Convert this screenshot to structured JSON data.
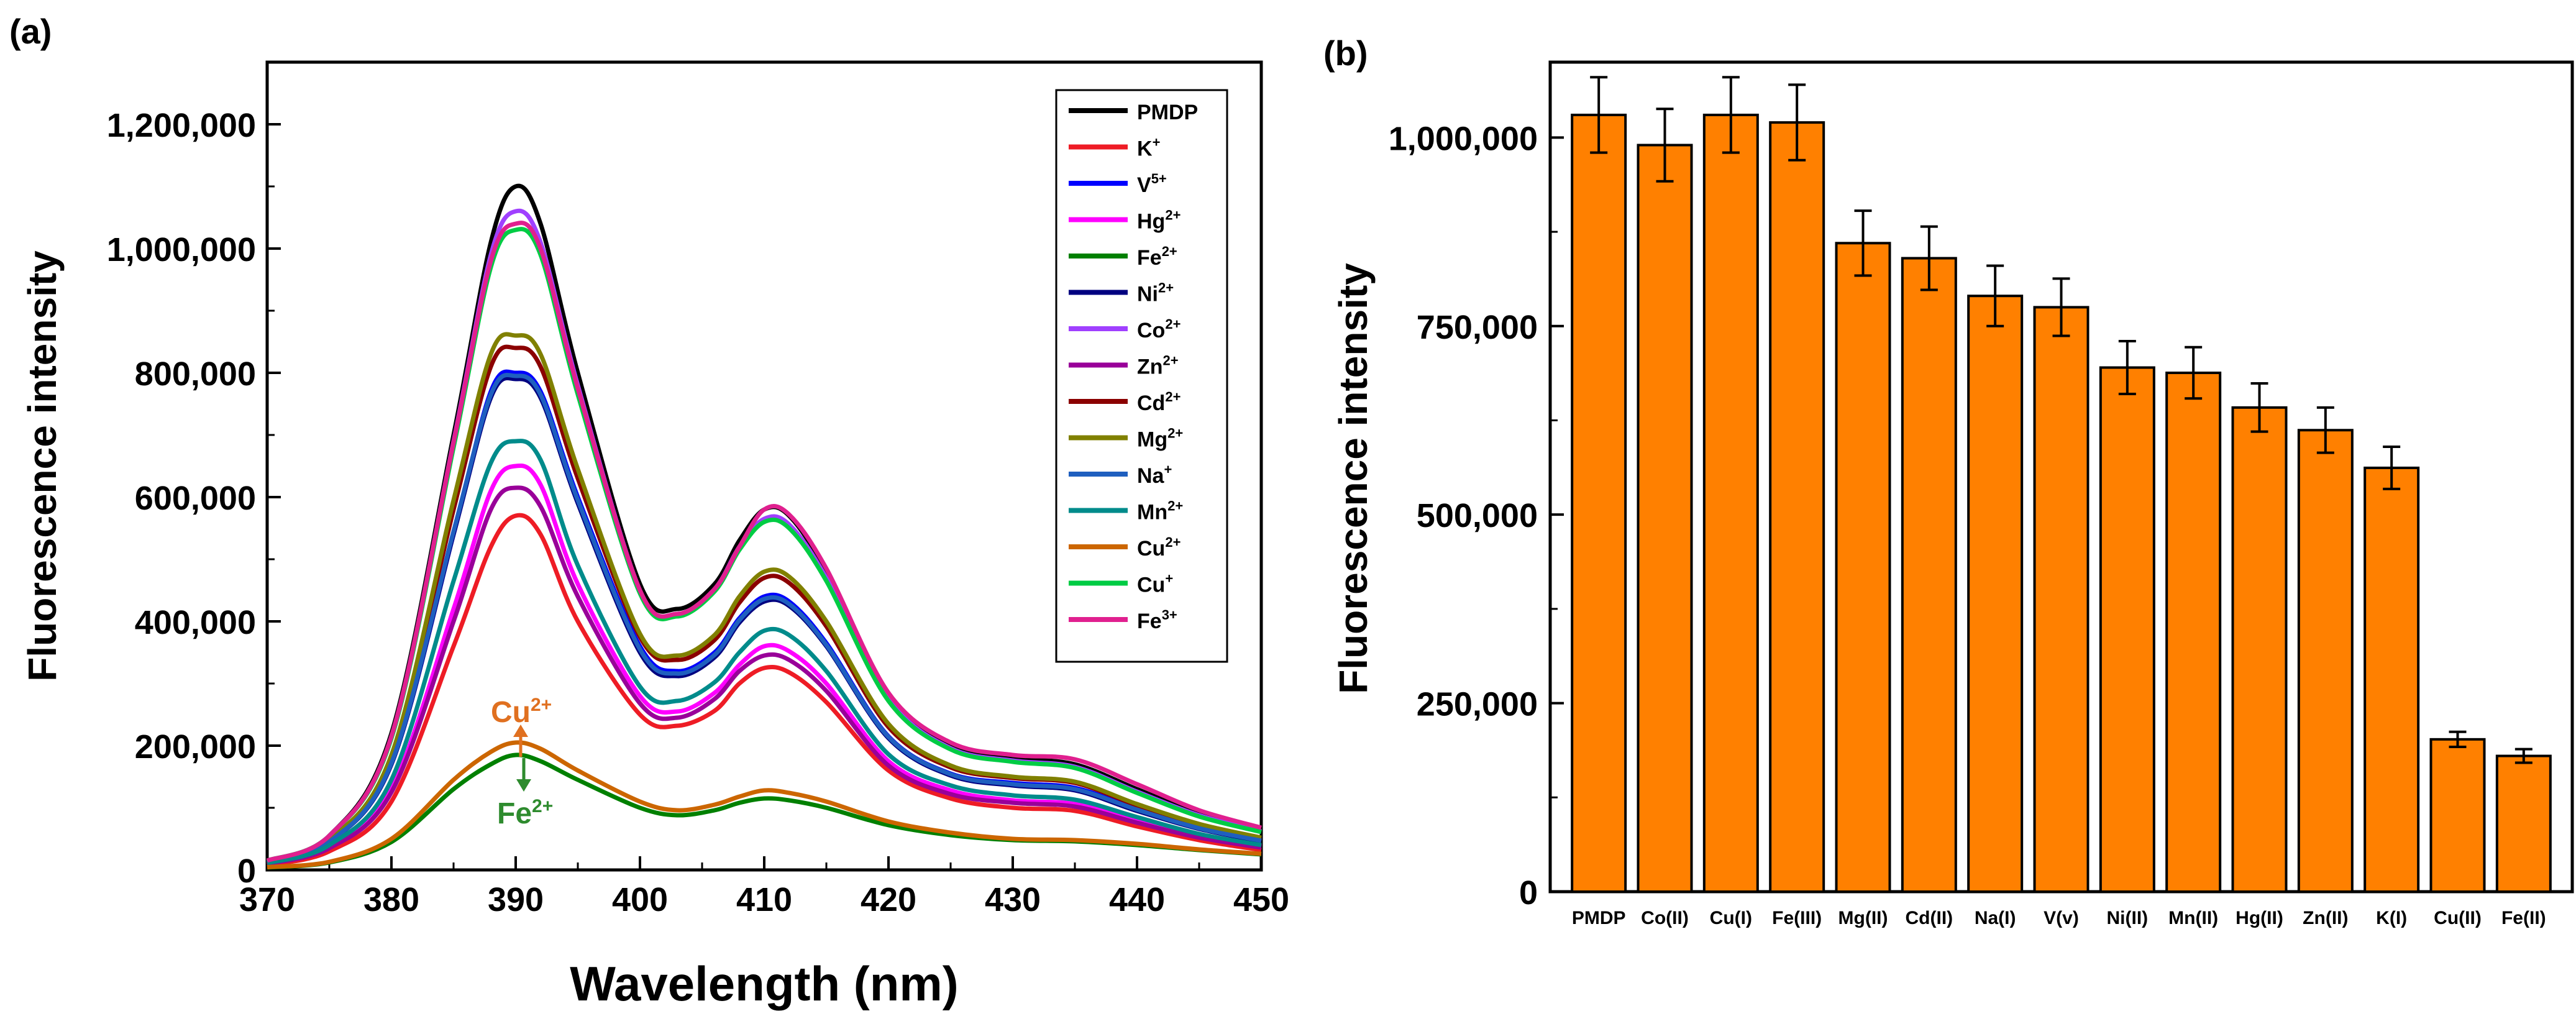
{
  "panel_a": {
    "panel_label": "(a)",
    "legend": [
      "PMDP",
      "K+",
      "V5+",
      "Hg2+",
      "Fe2+",
      "Ni2+",
      "Co2+",
      "Zn2+",
      "Cd2+",
      "Mg2+",
      "Na+",
      "Mn2+",
      "Cu2+",
      "Cu+",
      "Fe3+"
    ],
    "annotations": {
      "cu": {
        "text": "Cu",
        "sup": "2+",
        "arrow": "up",
        "color": "#E07020"
      },
      "fe": {
        "text": "Fe",
        "sup": "2+",
        "arrow": "down",
        "color": "#2E8B2E"
      }
    }
  },
  "panel_b": {
    "panel_label": "(b)"
  },
  "chart_data": [
    {
      "type": "line",
      "title": "",
      "xlabel": "Wavelength (nm)",
      "ylabel": "Fluorescence intensity",
      "xlim": [
        370,
        450
      ],
      "ylim": [
        0,
        1300000
      ],
      "xticks": [
        370,
        380,
        390,
        400,
        410,
        420,
        430,
        440,
        450
      ],
      "yticks": [
        0,
        200000,
        400000,
        600000,
        800000,
        1000000,
        1200000
      ],
      "ytick_labels": [
        "0",
        "200,000",
        "400,000",
        "600,000",
        "800,000",
        "1,000,000",
        "1,200,000"
      ],
      "x": [
        370,
        375,
        380,
        385,
        388,
        390,
        392,
        395,
        400,
        403,
        406,
        408,
        410,
        412,
        415,
        420,
        425,
        430,
        435,
        440,
        445,
        450
      ],
      "series": [
        {
          "name": "PMDP",
          "color": "#000000",
          "values": [
            15000,
            55000,
            220000,
            700000,
            1010000,
            1100000,
            1040000,
            800000,
            460000,
            420000,
            460000,
            530000,
            580000,
            570000,
            480000,
            280000,
            200000,
            180000,
            170000,
            130000,
            90000,
            65000
          ]
        },
        {
          "name": "K+",
          "color": "#EE1C25",
          "values": [
            8000,
            30000,
            110000,
            360000,
            520000,
            570000,
            540000,
            400000,
            250000,
            232000,
            256000,
            300000,
            325000,
            318000,
            270000,
            160000,
            115000,
            100000,
            95000,
            70000,
            48000,
            32000
          ]
        },
        {
          "name": "V5+",
          "color": "#0000FF",
          "values": [
            12000,
            45000,
            170000,
            540000,
            770000,
            800000,
            770000,
            600000,
            360000,
            320000,
            350000,
            405000,
            440000,
            432000,
            365000,
            215000,
            155000,
            140000,
            132000,
            98000,
            68000,
            48000
          ]
        },
        {
          "name": "Hg2+",
          "color": "#FF00FF",
          "values": [
            10000,
            36000,
            130000,
            420000,
            610000,
            650000,
            620000,
            460000,
            280000,
            255000,
            285000,
            330000,
            360000,
            352000,
            300000,
            175000,
            128000,
            112000,
            106000,
            80000,
            55000,
            38000
          ]
        },
        {
          "name": "Fe2+",
          "color": "#008000",
          "values": [
            4000,
            12000,
            45000,
            130000,
            170000,
            185000,
            175000,
            145000,
            100000,
            88000,
            96000,
            108000,
            115000,
            112000,
            100000,
            72000,
            56000,
            48000,
            46000,
            40000,
            32000,
            25000
          ]
        },
        {
          "name": "Ni2+",
          "color": "#000080",
          "values": [
            12000,
            45000,
            170000,
            540000,
            760000,
            790000,
            760000,
            590000,
            350000,
            312000,
            342000,
            398000,
            432000,
            425000,
            360000,
            212000,
            152000,
            136000,
            128000,
            95000,
            66000,
            46000
          ]
        },
        {
          "name": "Co2+",
          "color": "#A040FF",
          "values": [
            15000,
            55000,
            215000,
            690000,
            990000,
            1060000,
            1010000,
            780000,
            450000,
            412000,
            452000,
            520000,
            565000,
            556000,
            470000,
            275000,
            196000,
            176000,
            166000,
            126000,
            88000,
            62000
          ]
        },
        {
          "name": "Zn2+",
          "color": "#990099",
          "values": [
            10000,
            35000,
            125000,
            400000,
            580000,
            615000,
            585000,
            440000,
            268000,
            245000,
            275000,
            320000,
            345000,
            338000,
            288000,
            168000,
            122000,
            108000,
            102000,
            76000,
            52000,
            36000
          ]
        },
        {
          "name": "Cd2+",
          "color": "#8B0000",
          "values": [
            13000,
            48000,
            180000,
            580000,
            810000,
            840000,
            810000,
            630000,
            375000,
            338000,
            370000,
            430000,
            470000,
            462000,
            392000,
            230000,
            165000,
            148000,
            140000,
            104000,
            72000,
            50000
          ]
        },
        {
          "name": "Mg2+",
          "color": "#808000",
          "values": [
            13000,
            49000,
            185000,
            595000,
            830000,
            860000,
            830000,
            645000,
            380000,
            345000,
            378000,
            440000,
            480000,
            472000,
            400000,
            235000,
            168000,
            150000,
            142000,
            106000,
            74000,
            52000
          ]
        },
        {
          "name": "Na+",
          "color": "#1F5FBF",
          "values": [
            12000,
            45000,
            172000,
            545000,
            765000,
            795000,
            765000,
            595000,
            355000,
            316000,
            346000,
            402000,
            436000,
            428000,
            362000,
            214000,
            154000,
            138000,
            130000,
            97000,
            67000,
            47000
          ]
        },
        {
          "name": "Mn2+",
          "color": "#008B8B",
          "values": [
            11000,
            40000,
            145000,
            465000,
            655000,
            690000,
            660000,
            490000,
            295000,
            272000,
            302000,
            350000,
            385000,
            378000,
            320000,
            186000,
            136000,
            120000,
            113000,
            85000,
            58000,
            40000
          ]
        },
        {
          "name": "Cu2+",
          "color": "#CC6600",
          "values": [
            4500,
            13000,
            50000,
            145000,
            190000,
            205000,
            195000,
            160000,
            110000,
            96000,
            105000,
            118000,
            128000,
            124000,
            110000,
            78000,
            60000,
            50000,
            48000,
            42000,
            33000,
            26000
          ]
        },
        {
          "name": "Cu+",
          "color": "#00CC44",
          "values": [
            15000,
            55000,
            212000,
            680000,
            970000,
            1030000,
            990000,
            765000,
            445000,
            408000,
            448000,
            515000,
            560000,
            550000,
            465000,
            272000,
            194000,
            174000,
            164000,
            124000,
            86000,
            61000
          ]
        },
        {
          "name": "Fe3+",
          "color": "#E0208F",
          "values": [
            15000,
            55000,
            215000,
            688000,
            980000,
            1040000,
            1000000,
            775000,
            450000,
            412000,
            452000,
            520000,
            580000,
            572000,
            485000,
            285000,
            205000,
            185000,
            178000,
            138000,
            96000,
            68000
          ]
        }
      ]
    },
    {
      "type": "bar",
      "title": "",
      "xlabel": "",
      "ylabel": "Fluorescence intensity",
      "ylim": [
        0,
        1100000
      ],
      "yticks": [
        0,
        250000,
        500000,
        750000,
        1000000
      ],
      "ytick_labels": [
        "0",
        "250,000",
        "500,000",
        "750,000",
        "1,000,000"
      ],
      "bar_color": "#FF8000",
      "categories": [
        "PMDP",
        "Co(II)",
        "Cu(I)",
        "Fe(III)",
        "Mg(II)",
        "Cd(II)",
        "Na(I)",
        "V(v)",
        "Ni(II)",
        "Mn(II)",
        "Hg(II)",
        "Zn(II)",
        "K(I)",
        "Cu(II)",
        "Fe(II)"
      ],
      "values": [
        1030000,
        990000,
        1030000,
        1020000,
        860000,
        840000,
        790000,
        775000,
        695000,
        688000,
        642000,
        612000,
        562000,
        202000,
        180000
      ],
      "errors": [
        50000,
        48000,
        50000,
        50000,
        43000,
        42000,
        40000,
        38000,
        35000,
        34000,
        32000,
        30000,
        28000,
        10000,
        9000
      ]
    }
  ]
}
